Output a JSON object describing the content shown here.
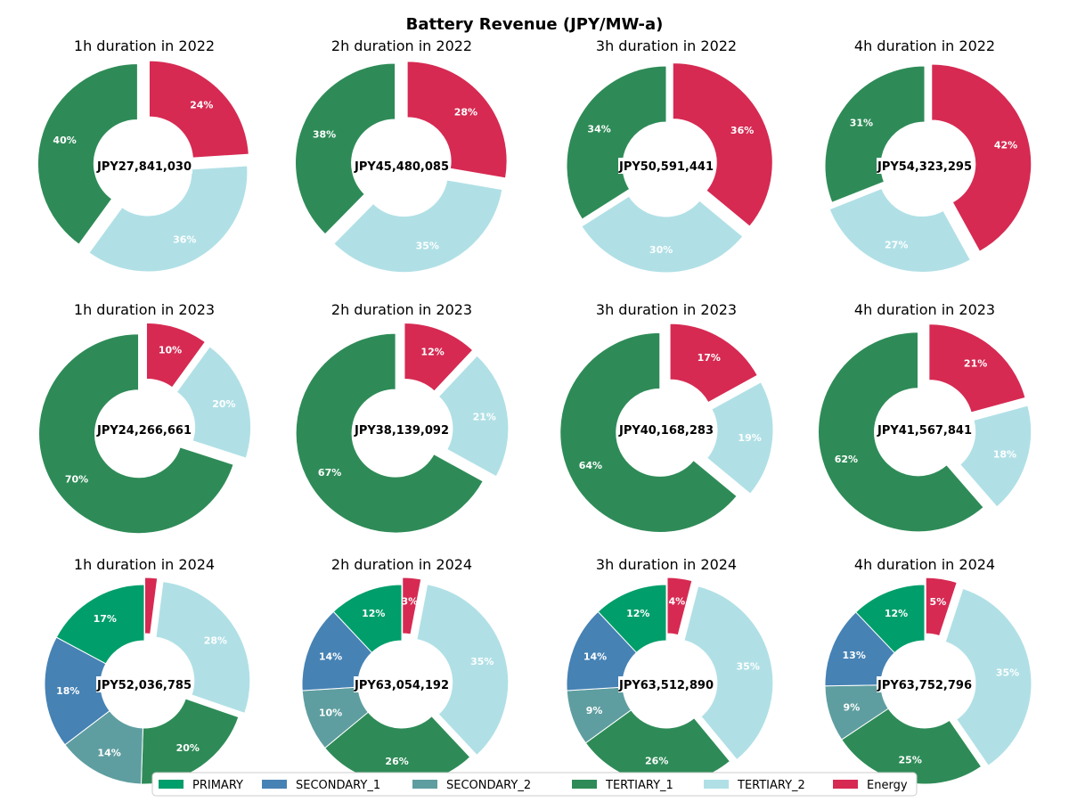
{
  "chart_data": {
    "type": "pie",
    "subtype": "donut",
    "title": "Battery Revenue (JPY/MW-a)",
    "legend_position": "bottom",
    "series": [
      {
        "name": "PRIMARY",
        "color": "#009E6B"
      },
      {
        "name": "SECONDARY_1",
        "color": "#4682B4"
      },
      {
        "name": "SECONDARY_2",
        "color": "#5F9EA0"
      },
      {
        "name": "TERTIARY_1",
        "color": "#2E8B57"
      },
      {
        "name": "TERTIARY_2",
        "color": "#B0E0E6"
      },
      {
        "name": "Energy",
        "color": "#D62A52"
      }
    ],
    "charts": [
      {
        "title": "1h duration in 2022",
        "total": "JPY27,841,030",
        "values": [
          0,
          0,
          0,
          40,
          36,
          24
        ],
        "labels": [
          "",
          "",
          "",
          "40%",
          "36%",
          "24%"
        ]
      },
      {
        "title": "2h duration in 2022",
        "total": "JPY45,480,085",
        "values": [
          0,
          0,
          0,
          38,
          35,
          28
        ],
        "labels": [
          "",
          "",
          "",
          "38%",
          "35%",
          "28%"
        ]
      },
      {
        "title": "3h duration in 2022",
        "total": "JPY50,591,441",
        "values": [
          0,
          0,
          0,
          34,
          30,
          36
        ],
        "labels": [
          "",
          "",
          "",
          "34%",
          "30%",
          "36%"
        ]
      },
      {
        "title": "4h duration in 2022",
        "total": "JPY54,323,295",
        "values": [
          0,
          0,
          0,
          31,
          27,
          42
        ],
        "labels": [
          "",
          "",
          "",
          "31%",
          "27%",
          "42%"
        ]
      },
      {
        "title": "1h duration in 2023",
        "total": "JPY24,266,661",
        "values": [
          0,
          0,
          0,
          70,
          20,
          10
        ],
        "labels": [
          "",
          "",
          "",
          "70%",
          "20%",
          "10%"
        ]
      },
      {
        "title": "2h duration in 2023",
        "total": "JPY38,139,092",
        "values": [
          0,
          0,
          0,
          67,
          21,
          12
        ],
        "labels": [
          "",
          "",
          "",
          "67%",
          "21%",
          "12%"
        ]
      },
      {
        "title": "3h duration in 2023",
        "total": "JPY40,168,283",
        "values": [
          0,
          0,
          0,
          64,
          19,
          17
        ],
        "labels": [
          "",
          "",
          "",
          "64%",
          "19%",
          "17%"
        ]
      },
      {
        "title": "4h duration in 2023",
        "total": "JPY41,567,841",
        "values": [
          0,
          0,
          0,
          62,
          18,
          21
        ],
        "labels": [
          "",
          "",
          "",
          "62%",
          "18%",
          "21%"
        ]
      },
      {
        "title": "1h duration in 2024",
        "total": "JPY52,036,785",
        "values": [
          17,
          18,
          14,
          20,
          28,
          2
        ],
        "labels": [
          "17%",
          "18%",
          "14%",
          "20%",
          "28%",
          ""
        ]
      },
      {
        "title": "2h duration in 2024",
        "total": "JPY63,054,192",
        "values": [
          12,
          14,
          10,
          26,
          35,
          3
        ],
        "labels": [
          "12%",
          "14%",
          "10%",
          "26%",
          "35%",
          "3%"
        ]
      },
      {
        "title": "3h duration in 2024",
        "total": "JPY63,512,890",
        "values": [
          12,
          14,
          9,
          26,
          35,
          4
        ],
        "labels": [
          "12%",
          "14%",
          "9%",
          "26%",
          "35%",
          "4%"
        ]
      },
      {
        "title": "4h duration in 2024",
        "total": "JPY63,752,796",
        "values": [
          12,
          13,
          9,
          25,
          35,
          5
        ],
        "labels": [
          "12%",
          "13%",
          "9%",
          "25%",
          "35%",
          "5%"
        ]
      }
    ]
  }
}
